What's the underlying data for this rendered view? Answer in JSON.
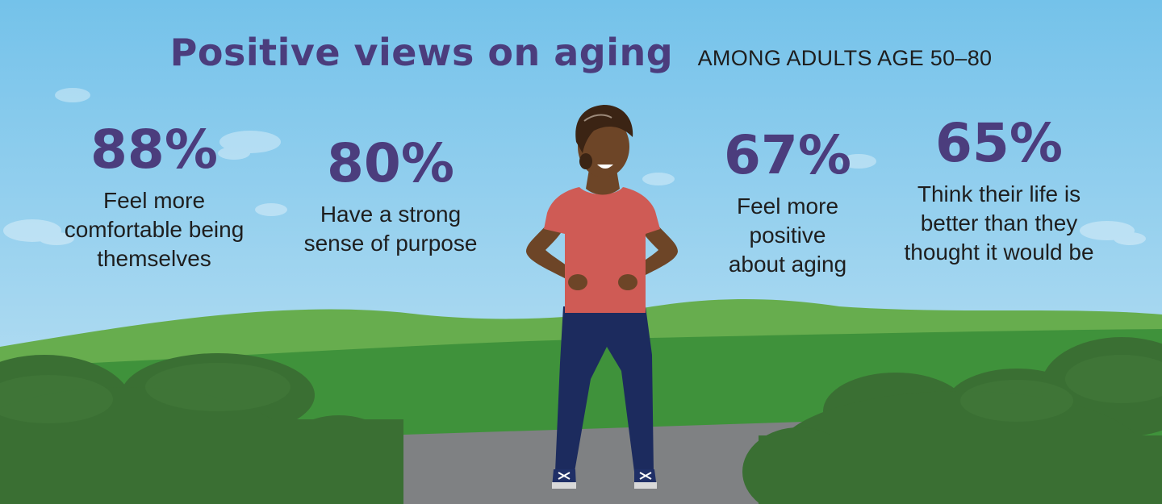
{
  "header": {
    "title": "Positive views on aging",
    "subtitle": "AMONG ADULTS AGE 50–80"
  },
  "stats": [
    {
      "value": "88%",
      "label": "Feel more\ncomfortable being\nthemselves"
    },
    {
      "value": "80%",
      "label": "Have a strong\nsense of purpose"
    },
    {
      "value": "67%",
      "label": "Feel more\npositive\nabout aging"
    },
    {
      "value": "65%",
      "label": "Think their life is\nbetter than they\nthought it would be"
    }
  ],
  "colors": {
    "accent_purple": "#4b3d7d",
    "sky_top": "#74c2ea",
    "sky_bottom": "#c4e4f4",
    "hill_light": "#67ad4e",
    "hill_dark": "#3f923b",
    "bush": "#3a6f33",
    "path": "#7f8183",
    "shirt": "#cf5b55",
    "pants": "#1c2b5e",
    "skin": "#6d4527"
  }
}
